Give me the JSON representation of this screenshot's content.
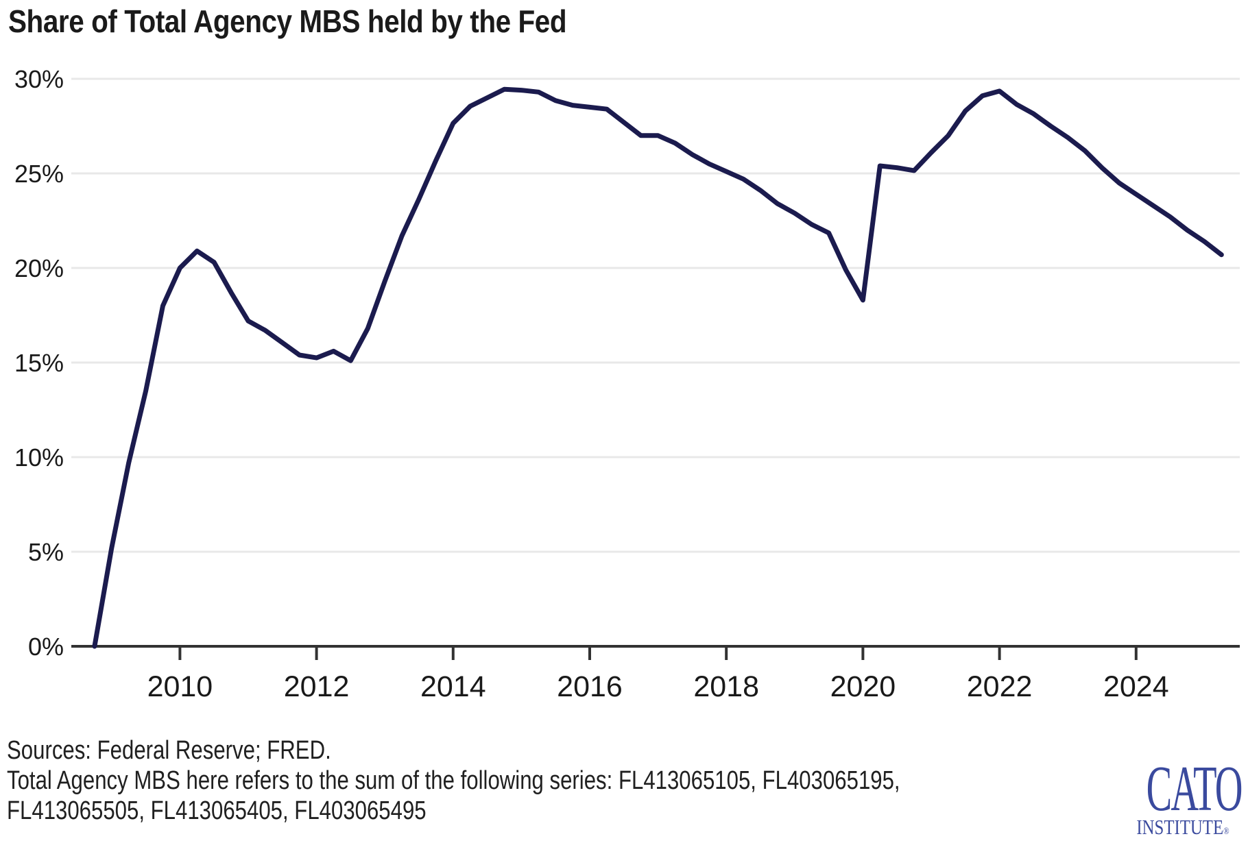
{
  "header": {
    "title": "Share of Total Agency MBS held by the Fed"
  },
  "chart_data": {
    "type": "line",
    "title": "Share of Total Agency MBS held by the Fed",
    "xlabel": "",
    "ylabel": "",
    "ylim": [
      0,
      30
    ],
    "xlim": [
      2008.35,
      2025.45
    ],
    "grid": "horizontal gridlines every 5%, light gray; solid dark baseline at 0%",
    "legend": "none",
    "line_color": "#1b1b4e",
    "axis_color": "#323232",
    "gridline_color": "#e8e8e8",
    "y_ticks": [
      {
        "value": 30,
        "label": "30%"
      },
      {
        "value": 25,
        "label": "25%"
      },
      {
        "value": 20,
        "label": "20%"
      },
      {
        "value": 15,
        "label": "15%"
      },
      {
        "value": 10,
        "label": "10%"
      },
      {
        "value": 5,
        "label": "5%"
      },
      {
        "value": 0,
        "label": "0%"
      }
    ],
    "x_ticks": [
      {
        "year": 2010,
        "label": "2010"
      },
      {
        "year": 2012,
        "label": "2012"
      },
      {
        "year": 2014,
        "label": "2014"
      },
      {
        "year": 2016,
        "label": "2016"
      },
      {
        "year": 2018,
        "label": "2018"
      },
      {
        "year": 2020,
        "label": "2020"
      },
      {
        "year": 2022,
        "label": "2022"
      },
      {
        "year": 2024,
        "label": "2024"
      }
    ],
    "series": [
      {
        "name": "Share of total agency MBS held by the Fed (quarterly, %)",
        "color": "#1b1b4e",
        "points": [
          [
            2008.75,
            0.0
          ],
          [
            2009.0,
            5.2
          ],
          [
            2009.25,
            9.7
          ],
          [
            2009.5,
            13.5
          ],
          [
            2009.75,
            18.0
          ],
          [
            2010.0,
            20.0
          ],
          [
            2010.25,
            20.9
          ],
          [
            2010.5,
            20.3
          ],
          [
            2010.75,
            18.7
          ],
          [
            2011.0,
            17.2
          ],
          [
            2011.25,
            16.7
          ],
          [
            2011.5,
            16.05
          ],
          [
            2011.75,
            15.4
          ],
          [
            2012.0,
            15.25
          ],
          [
            2012.25,
            15.6
          ],
          [
            2012.5,
            15.1
          ],
          [
            2012.75,
            16.8
          ],
          [
            2013.0,
            19.3
          ],
          [
            2013.25,
            21.7
          ],
          [
            2013.5,
            23.65
          ],
          [
            2013.75,
            25.7
          ],
          [
            2014.0,
            27.65
          ],
          [
            2014.25,
            28.55
          ],
          [
            2014.5,
            29.0
          ],
          [
            2014.75,
            29.45
          ],
          [
            2015.0,
            29.4
          ],
          [
            2015.25,
            29.3
          ],
          [
            2015.5,
            28.85
          ],
          [
            2015.75,
            28.6
          ],
          [
            2016.0,
            28.5
          ],
          [
            2016.25,
            28.4
          ],
          [
            2016.5,
            27.7
          ],
          [
            2016.75,
            27.0
          ],
          [
            2017.0,
            27.0
          ],
          [
            2017.25,
            26.6
          ],
          [
            2017.5,
            26.0
          ],
          [
            2017.75,
            25.5
          ],
          [
            2018.0,
            25.1
          ],
          [
            2018.25,
            24.7
          ],
          [
            2018.5,
            24.1
          ],
          [
            2018.75,
            23.4
          ],
          [
            2019.0,
            22.9
          ],
          [
            2019.25,
            22.3
          ],
          [
            2019.5,
            21.85
          ],
          [
            2019.75,
            19.9
          ],
          [
            2020.0,
            18.3
          ],
          [
            2020.25,
            25.4
          ],
          [
            2020.5,
            25.3
          ],
          [
            2020.75,
            25.15
          ],
          [
            2021.0,
            26.1
          ],
          [
            2021.25,
            27.0
          ],
          [
            2021.5,
            28.3
          ],
          [
            2021.75,
            29.1
          ],
          [
            2022.0,
            29.35
          ],
          [
            2022.25,
            28.65
          ],
          [
            2022.5,
            28.15
          ],
          [
            2022.75,
            27.5
          ],
          [
            2023.0,
            26.9
          ],
          [
            2023.25,
            26.2
          ],
          [
            2023.5,
            25.3
          ],
          [
            2023.75,
            24.5
          ],
          [
            2024.0,
            23.9
          ],
          [
            2024.25,
            23.3
          ],
          [
            2024.5,
            22.7
          ],
          [
            2024.75,
            22.0
          ],
          [
            2025.0,
            21.4
          ],
          [
            2025.25,
            20.7
          ]
        ]
      }
    ]
  },
  "footnotes": {
    "sources": "Sources: Federal Reserve; FRED.",
    "note_line1": "Total Agency MBS here refers to the sum of the following series: FL413065105, FL403065195,",
    "note_line2": "FL413065505, FL413065405, FL403065495"
  },
  "logo": {
    "wordmark": "CATO",
    "subtext": "INSTITUTE",
    "registered": "®",
    "color": "#3a4a9e"
  }
}
